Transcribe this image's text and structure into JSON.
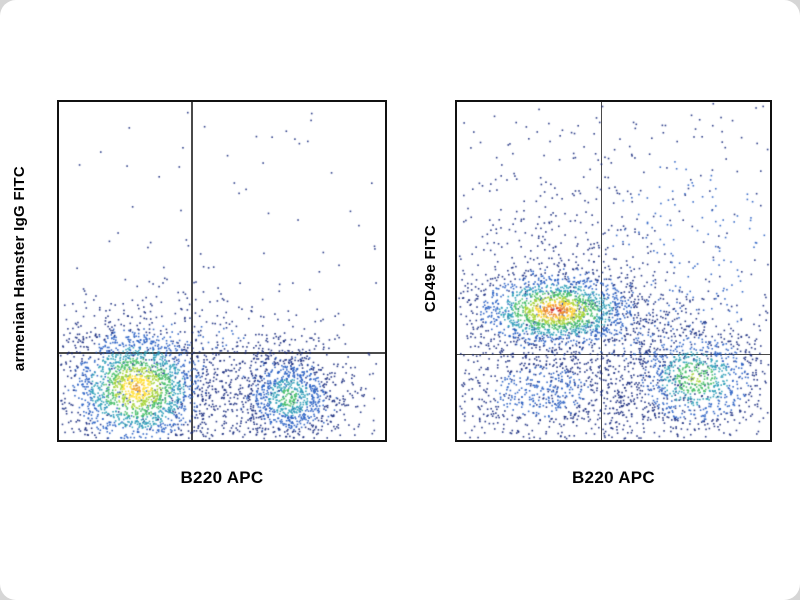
{
  "figure": {
    "background_color": "#ffffff",
    "page_color": "#d6d6d6",
    "description_colors": {
      "density_low": "#1c2f80",
      "density_mid": "#49bf6a",
      "density_high": "#d63226",
      "quadrant_line": "#4a4a4a",
      "frame": "#111111"
    }
  },
  "chart_data": [
    {
      "type": "scatter",
      "flavor": "flow-cytometry-density-dot-plot",
      "title": "",
      "xlabel": "B220 APC",
      "ylabel": "armenian Hamster IgG FITC",
      "grid": false,
      "legend": false,
      "quadrant": {
        "x": 0.405,
        "y": 0.74
      },
      "seed": 101,
      "clusters": [
        {
          "name": "lower-left-halo",
          "cx": 0.24,
          "cy": 0.84,
          "sx": 0.2,
          "sy": 0.155,
          "n": 450,
          "colors": [
            "#2b62c4",
            "#1c2f80"
          ],
          "thresholds": [
            1.1,
            99
          ]
        },
        {
          "name": "lower-right-halo",
          "cx": 0.7,
          "cy": 0.865,
          "sx": 0.16,
          "sy": 0.125,
          "n": 260,
          "colors": [
            "#2b62c4",
            "#1c2f80"
          ],
          "thresholds": [
            1.0,
            99
          ]
        },
        {
          "name": "above-gate-band",
          "cx": 0.34,
          "cy": 0.7,
          "sx": 0.3,
          "sy": 0.055,
          "n": 230,
          "colors": [
            "#2b62c4",
            "#1c2f80"
          ],
          "thresholds": [
            0.8,
            99
          ]
        },
        {
          "name": "bottom-bridge",
          "cx": 0.47,
          "cy": 0.88,
          "sx": 0.14,
          "sy": 0.07,
          "n": 180,
          "colors": [
            "#1c2f80"
          ],
          "thresholds": [
            99
          ]
        },
        {
          "name": "background-sparse",
          "shape": "uniform",
          "region": [
            0.02,
            0.03,
            0.98,
            0.97
          ],
          "n": 80,
          "colors": [
            "#1c2f80"
          ]
        },
        {
          "name": "b220-neg-main",
          "cx": 0.24,
          "cy": 0.845,
          "sx": 0.1,
          "sy": 0.083,
          "n": 1700,
          "colors": [
            "#f0a32a",
            "#ffe03a",
            "#a8d53c",
            "#49bf6a",
            "#2fa0b8",
            "#2b62c4",
            "#1c2f80"
          ],
          "thresholds": [
            0.18,
            0.45,
            0.75,
            1.05,
            1.45,
            1.95,
            99
          ]
        },
        {
          "name": "b220-pos-main",
          "cx": 0.705,
          "cy": 0.875,
          "sx": 0.085,
          "sy": 0.072,
          "n": 950,
          "colors": [
            "#49bf6a",
            "#2fa0b8",
            "#2b62c4",
            "#1c2f80"
          ],
          "thresholds": [
            0.35,
            0.75,
            1.3,
            99
          ]
        }
      ]
    },
    {
      "type": "scatter",
      "flavor": "flow-cytometry-density-dot-plot",
      "title": "",
      "xlabel": "B220 APC",
      "ylabel": "CD49e FITC",
      "grid": false,
      "legend": false,
      "quadrant": {
        "x": 0.46,
        "y": 0.745
      },
      "seed": 202,
      "clusters": [
        {
          "name": "cd49e-pos-halo",
          "cx": 0.33,
          "cy": 0.62,
          "sx": 0.24,
          "sy": 0.13,
          "n": 500,
          "colors": [
            "#2b62c4",
            "#1c2f80"
          ],
          "thresholds": [
            1.0,
            99
          ]
        },
        {
          "name": "upper-left-sparse",
          "cx": 0.28,
          "cy": 0.4,
          "sx": 0.16,
          "sy": 0.16,
          "n": 150,
          "colors": [
            "#1c2f80"
          ],
          "thresholds": [
            99
          ]
        },
        {
          "name": "upper-right-cloud",
          "cx": 0.74,
          "cy": 0.44,
          "sx": 0.21,
          "sy": 0.23,
          "n": 300,
          "colors": [
            "#2b62c4",
            "#1c2f80"
          ],
          "thresholds": [
            1.2,
            99
          ]
        },
        {
          "name": "background-sparse",
          "shape": "uniform",
          "region": [
            0.02,
            0.03,
            0.98,
            0.97
          ],
          "n": 170,
          "colors": [
            "#1c2f80"
          ]
        },
        {
          "name": "mid-trail",
          "cx": 0.54,
          "cy": 0.7,
          "sx": 0.18,
          "sy": 0.09,
          "n": 220,
          "colors": [
            "#2b62c4",
            "#1c2f80"
          ],
          "thresholds": [
            0.7,
            99
          ]
        },
        {
          "name": "bottom-bridge",
          "cx": 0.52,
          "cy": 0.88,
          "sx": 0.2,
          "sy": 0.08,
          "n": 250,
          "colors": [
            "#1c2f80"
          ],
          "thresholds": [
            99
          ]
        },
        {
          "name": "lower-left-neg",
          "cx": 0.27,
          "cy": 0.86,
          "sx": 0.17,
          "sy": 0.085,
          "n": 650,
          "colors": [
            "#2b62c4",
            "#1c2f80"
          ],
          "thresholds": [
            0.9,
            99
          ]
        },
        {
          "name": "b220-pos-lower-right",
          "cx": 0.762,
          "cy": 0.818,
          "sx": 0.115,
          "sy": 0.085,
          "n": 950,
          "colors": [
            "#a8d53c",
            "#49bf6a",
            "#2fa0b8",
            "#2b62c4",
            "#1c2f80"
          ],
          "thresholds": [
            0.2,
            0.55,
            0.95,
            1.5,
            99
          ]
        },
        {
          "name": "cd49e-pos-main",
          "cx": 0.315,
          "cy": 0.617,
          "sx": 0.125,
          "sy": 0.052,
          "n": 1500,
          "colors": [
            "#d63226",
            "#f08c2a",
            "#ffd23a",
            "#a8d53c",
            "#49bf6a",
            "#2fa0b8",
            "#2b62c4",
            "#1c2f80"
          ],
          "thresholds": [
            0.15,
            0.33,
            0.55,
            0.8,
            1.1,
            1.5,
            2.0,
            99
          ]
        }
      ]
    }
  ]
}
